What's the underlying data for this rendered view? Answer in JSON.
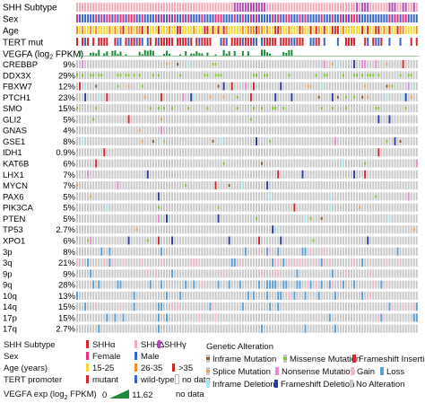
{
  "chart_data": {
    "type": "heatmap",
    "title": "",
    "n_samples": 126,
    "clinical_tracks": [
      {
        "label": "SHH Subtype"
      },
      {
        "label": "Sex"
      },
      {
        "label": "Age"
      },
      {
        "label": "TERT mut"
      },
      {
        "label": "VEGFA (log2 FPKM)"
      }
    ],
    "vegfa_label_main": "VEGFA (log",
    "vegfa_label_sub": "2",
    "vegfa_label_end": " FPKM)",
    "genes": [
      {
        "name": "CREBBP",
        "pct": "9%"
      },
      {
        "name": "DDX3X",
        "pct": "29%"
      },
      {
        "name": "FBXW7",
        "pct": "12%"
      },
      {
        "name": "PTCH1",
        "pct": "23%"
      },
      {
        "name": "SMO",
        "pct": "15%"
      },
      {
        "name": "GLI2",
        "pct": "5%"
      },
      {
        "name": "GNAS",
        "pct": "4%"
      },
      {
        "name": "GSE1",
        "pct": "8%"
      },
      {
        "name": "IDH1",
        "pct": "0.9%"
      },
      {
        "name": "KAT6B",
        "pct": "6%"
      },
      {
        "name": "LHX1",
        "pct": "7%"
      },
      {
        "name": "MYCN",
        "pct": "7%"
      },
      {
        "name": "PAX6",
        "pct": "5%"
      },
      {
        "name": "PIK3CA",
        "pct": "5%"
      },
      {
        "name": "PTEN",
        "pct": "5%"
      },
      {
        "name": "TP53",
        "pct": "2.7%"
      },
      {
        "name": "XPO1",
        "pct": "6%"
      },
      {
        "name": "3p",
        "pct": "8%"
      },
      {
        "name": "3q",
        "pct": "21%"
      },
      {
        "name": "9p",
        "pct": "9%"
      },
      {
        "name": "9q",
        "pct": "28%"
      },
      {
        "name": "10q",
        "pct": "13%"
      },
      {
        "name": "14q",
        "pct": "15%"
      },
      {
        "name": "17p",
        "pct": "15%"
      },
      {
        "name": "17q",
        "pct": "2.7%"
      }
    ],
    "colors": {
      "shh_alpha": "#d7262f",
      "shh_delta": "#f4a9b8",
      "shh_gamma": "#b24bb5",
      "female": "#e8317d",
      "male": "#3a67c6",
      "age_15_25": "#f2d936",
      "age_26_35": "#f08a2a",
      "age_gt35": "#cc2a22",
      "tert_mutant": "#d7262f",
      "tert_wild": "#3a67c6",
      "no_data": "#ffffff",
      "vegfa": "#1f8a3a",
      "inframe_mutation": "#8b5a2b",
      "missense_mutation": "#7fc92a",
      "frameshift_insertion": "#d7262f",
      "splice_mutation": "#f0a050",
      "nonsense_mutation": "#e88ad6",
      "gain": "#f5b8c8",
      "loss": "#5a9fd6",
      "inframe_deletion": "#a8e6ee",
      "frameshift_deletion": "#2c3e9e",
      "no_alteration": "#c8c8c8"
    }
  },
  "legend": {
    "shh_subtype": {
      "label": "SHH Subtype",
      "items": [
        "SHHα",
        "SHHΔ",
        "SHHγ"
      ]
    },
    "sex": {
      "label": "Sex",
      "items": [
        "Female",
        "Male"
      ]
    },
    "age": {
      "label": "Age (years)",
      "items": [
        "15-25",
        "26-35",
        ">35"
      ]
    },
    "tert": {
      "label": "TERT promoter",
      "items": [
        "mutant",
        "wild-type",
        "no data"
      ]
    },
    "vegfa": {
      "label_main": "VEGFA exp (log",
      "label_sub": "2",
      "label_end": " FPKM)",
      "min": "0",
      "max": "11.62",
      "no_data": "no data"
    },
    "genetic": {
      "label": "Genetic Alteration",
      "items": [
        "Inframe Mutation",
        "Missense Mutation",
        "Frameshift Insertion",
        "Splice Mutation",
        "Nonsense Mutation",
        "Gain",
        "Loss",
        "Inframe Deletion",
        "Frameshift Deletion",
        "No Alteration"
      ]
    }
  }
}
